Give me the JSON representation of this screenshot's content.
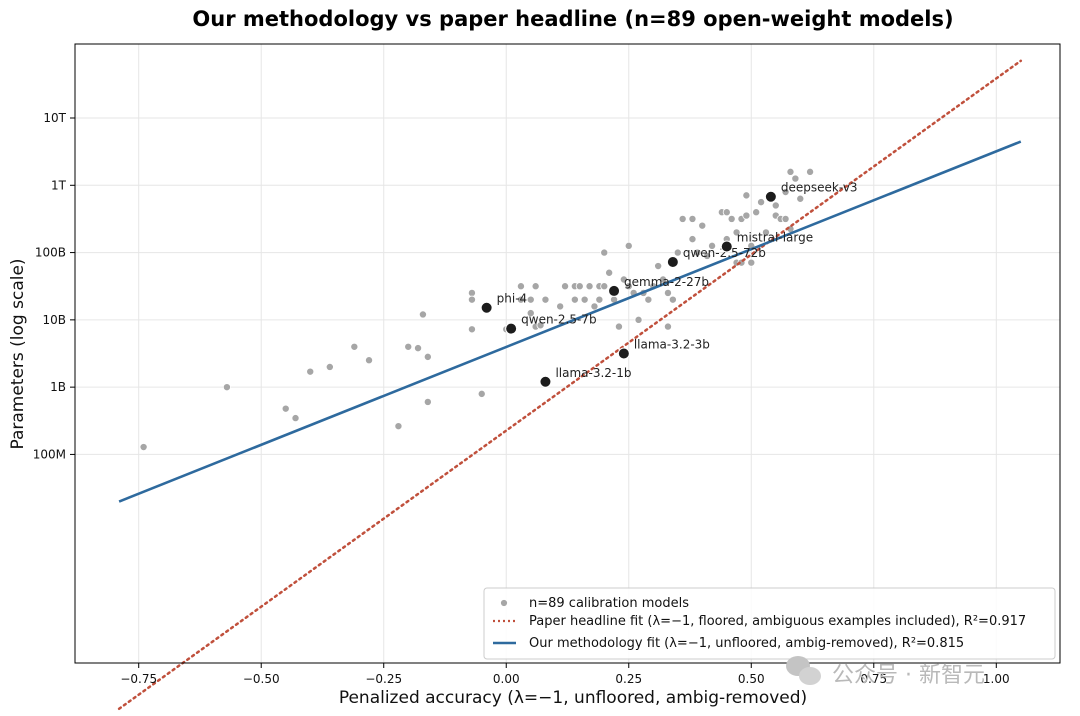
{
  "chart_data": {
    "type": "scatter",
    "title": "Our methodology vs paper headline (n=89 open-weight models)",
    "xlabel": "Penalized accuracy (λ=−1, unfloored, ambig-removed)",
    "ylabel": "Parameters (log scale)",
    "x_range": [
      -0.88,
      1.13
    ],
    "y_scale": "log",
    "y_range_log10": [
      4.9,
      14.1
    ],
    "grid": true,
    "x_ticks": [
      {
        "value": -0.75,
        "label": "−0.75"
      },
      {
        "value": -0.5,
        "label": "−0.50"
      },
      {
        "value": -0.25,
        "label": "−0.25"
      },
      {
        "value": 0.0,
        "label": "0.00"
      },
      {
        "value": 0.25,
        "label": "0.25"
      },
      {
        "value": 0.5,
        "label": "0.50"
      },
      {
        "value": 0.75,
        "label": "0.75"
      },
      {
        "value": 1.0,
        "label": "1.00"
      }
    ],
    "y_ticks": [
      {
        "log10": 8,
        "label": "100M"
      },
      {
        "log10": 9,
        "label": "1B"
      },
      {
        "log10": 10,
        "label": "10B"
      },
      {
        "log10": 11,
        "label": "100B"
      },
      {
        "log10": 12,
        "label": "1T"
      },
      {
        "log10": 13,
        "label": "10T"
      }
    ],
    "legend_position": "bottom-right",
    "series": [
      {
        "name": "n=89 calibration models",
        "kind": "scatter",
        "color": "#a6a6a6",
        "points": [
          [
            -0.74,
            8.11
          ],
          [
            -0.57,
            9.0
          ],
          [
            -0.45,
            8.68
          ],
          [
            -0.43,
            8.54
          ],
          [
            -0.4,
            9.23
          ],
          [
            -0.36,
            9.3
          ],
          [
            -0.31,
            9.6
          ],
          [
            -0.28,
            9.4
          ],
          [
            -0.22,
            8.42
          ],
          [
            -0.2,
            9.6
          ],
          [
            -0.18,
            9.58
          ],
          [
            -0.17,
            10.08
          ],
          [
            -0.16,
            9.45
          ],
          [
            -0.16,
            8.78
          ],
          [
            -0.05,
            8.9
          ],
          [
            -0.07,
            10.4
          ],
          [
            -0.07,
            10.3
          ],
          [
            -0.07,
            9.86
          ],
          [
            0.0,
            9.86
          ],
          [
            0.03,
            10.5
          ],
          [
            0.03,
            10.3
          ],
          [
            0.05,
            10.3
          ],
          [
            0.05,
            10.1
          ],
          [
            0.06,
            10.5
          ],
          [
            0.06,
            9.9
          ],
          [
            0.07,
            9.92
          ],
          [
            0.08,
            10.3
          ],
          [
            0.11,
            10.2
          ],
          [
            0.12,
            10.5
          ],
          [
            0.14,
            10.3
          ],
          [
            0.14,
            10.5
          ],
          [
            0.15,
            10.5
          ],
          [
            0.16,
            10.3
          ],
          [
            0.17,
            10.5
          ],
          [
            0.18,
            10.2
          ],
          [
            0.19,
            10.5
          ],
          [
            0.19,
            10.3
          ],
          [
            0.2,
            11.0
          ],
          [
            0.2,
            10.5
          ],
          [
            0.21,
            10.7
          ],
          [
            0.22,
            10.3
          ],
          [
            0.23,
            9.9
          ],
          [
            0.24,
            10.6
          ],
          [
            0.25,
            11.1
          ],
          [
            0.25,
            10.5
          ],
          [
            0.26,
            10.4
          ],
          [
            0.27,
            10.0
          ],
          [
            0.28,
            10.4
          ],
          [
            0.29,
            10.3
          ],
          [
            0.3,
            10.5
          ],
          [
            0.31,
            10.8
          ],
          [
            0.32,
            10.6
          ],
          [
            0.33,
            10.4
          ],
          [
            0.33,
            9.9
          ],
          [
            0.34,
            10.3
          ],
          [
            0.35,
            11.0
          ],
          [
            0.36,
            11.5
          ],
          [
            0.38,
            11.5
          ],
          [
            0.38,
            11.2
          ],
          [
            0.39,
            11.0
          ],
          [
            0.4,
            11.4
          ],
          [
            0.41,
            10.95
          ],
          [
            0.42,
            11.1
          ],
          [
            0.44,
            11.6
          ],
          [
            0.45,
            11.6
          ],
          [
            0.45,
            11.2
          ],
          [
            0.46,
            11.5
          ],
          [
            0.47,
            10.85
          ],
          [
            0.47,
            11.3
          ],
          [
            0.48,
            10.85
          ],
          [
            0.48,
            11.5
          ],
          [
            0.49,
            11.85
          ],
          [
            0.49,
            11.55
          ],
          [
            0.5,
            11.1
          ],
          [
            0.5,
            10.85
          ],
          [
            0.51,
            11.6
          ],
          [
            0.52,
            11.75
          ],
          [
            0.53,
            11.3
          ],
          [
            0.54,
            11.8
          ],
          [
            0.55,
            11.7
          ],
          [
            0.55,
            11.55
          ],
          [
            0.56,
            11.5
          ],
          [
            0.57,
            11.9
          ],
          [
            0.57,
            11.5
          ],
          [
            0.58,
            11.35
          ],
          [
            0.58,
            12.2
          ],
          [
            0.59,
            12.1
          ],
          [
            0.6,
            11.8
          ],
          [
            0.62,
            12.2
          ]
        ]
      },
      {
        "name": "Paper headline fit (λ=−1, floored, ambiguous examples included), R²=0.917",
        "kind": "line",
        "style": "dotted",
        "color": "#c0503c",
        "points": [
          [
            -0.79,
            4.22
          ],
          [
            1.05,
            13.85
          ]
        ]
      },
      {
        "name": "Our methodology fit (λ=−1, unfloored, ambig-removed), R²=0.815",
        "kind": "line",
        "style": "solid",
        "color": "#2e6a9e",
        "points": [
          [
            -0.79,
            7.3
          ],
          [
            1.05,
            12.65
          ]
        ]
      }
    ],
    "highlighted": [
      {
        "label": "phi-4",
        "x": -0.04,
        "y": 10.18
      },
      {
        "label": "qwen-2.5-7b",
        "x": 0.01,
        "y": 9.87
      },
      {
        "label": "gemma-2-27b",
        "x": 0.22,
        "y": 10.43
      },
      {
        "label": "llama-3.2-1b",
        "x": 0.08,
        "y": 9.08
      },
      {
        "label": "llama-3.2-3b",
        "x": 0.24,
        "y": 9.5
      },
      {
        "label": "qwen-2.5-72b",
        "x": 0.34,
        "y": 10.86
      },
      {
        "label": "mistral-large",
        "x": 0.45,
        "y": 11.09
      },
      {
        "label": "deepseek-v3",
        "x": 0.54,
        "y": 11.83
      }
    ]
  },
  "watermark": {
    "text": "公众号 · 新智元",
    "icon": "wechat-icon"
  }
}
